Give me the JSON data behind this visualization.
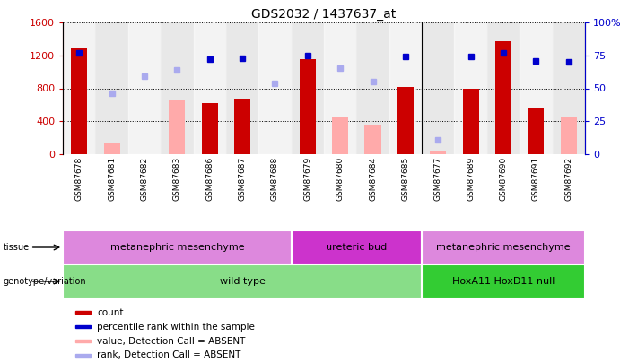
{
  "title": "GDS2032 / 1437637_at",
  "samples": [
    "GSM87678",
    "GSM87681",
    "GSM87682",
    "GSM87683",
    "GSM87686",
    "GSM87687",
    "GSM87688",
    "GSM87679",
    "GSM87680",
    "GSM87684",
    "GSM87685",
    "GSM87677",
    "GSM87689",
    "GSM87690",
    "GSM87691",
    "GSM87692"
  ],
  "count_values": [
    1280,
    null,
    null,
    null,
    620,
    660,
    null,
    1150,
    null,
    null,
    820,
    null,
    790,
    1370,
    570,
    null
  ],
  "count_absent": [
    null,
    130,
    null,
    650,
    null,
    null,
    null,
    null,
    450,
    350,
    null,
    30,
    null,
    null,
    null,
    450
  ],
  "rank_values_pct": [
    77,
    null,
    null,
    null,
    72,
    73,
    null,
    75,
    null,
    null,
    74,
    null,
    74,
    77,
    71,
    70
  ],
  "rank_absent_pct": [
    null,
    46,
    59,
    64,
    null,
    null,
    54,
    null,
    65,
    55,
    null,
    11,
    null,
    null,
    null,
    null
  ],
  "ylim_left": [
    0,
    1600
  ],
  "ylim_right": [
    0,
    100
  ],
  "yticks_left": [
    0,
    400,
    800,
    1200,
    1600
  ],
  "yticks_right": [
    0,
    25,
    50,
    75,
    100
  ],
  "ytick_labels_right": [
    "0",
    "25",
    "50",
    "75",
    "100%"
  ],
  "count_color": "#cc0000",
  "count_absent_color": "#ffaaaa",
  "rank_color": "#0000cc",
  "rank_absent_color": "#aaaaee",
  "plot_bg": "#e8e8e8",
  "genotype_row": [
    {
      "label": "wild type",
      "start": 0,
      "end": 10,
      "color": "#88dd88"
    },
    {
      "label": "HoxA11 HoxD11 null",
      "start": 11,
      "end": 15,
      "color": "#33cc33"
    }
  ],
  "tissue_row": [
    {
      "label": "metanephric mesenchyme",
      "start": 0,
      "end": 6,
      "color": "#dd88dd"
    },
    {
      "label": "ureteric bud",
      "start": 7,
      "end": 10,
      "color": "#cc33cc"
    },
    {
      "label": "metanephric mesenchyme",
      "start": 11,
      "end": 15,
      "color": "#dd88dd"
    }
  ],
  "legend_items": [
    {
      "label": "count",
      "color": "#cc0000"
    },
    {
      "label": "percentile rank within the sample",
      "color": "#0000cc"
    },
    {
      "label": "value, Detection Call = ABSENT",
      "color": "#ffaaaa"
    },
    {
      "label": "rank, Detection Call = ABSENT",
      "color": "#aaaaee"
    }
  ],
  "bar_width": 0.5
}
